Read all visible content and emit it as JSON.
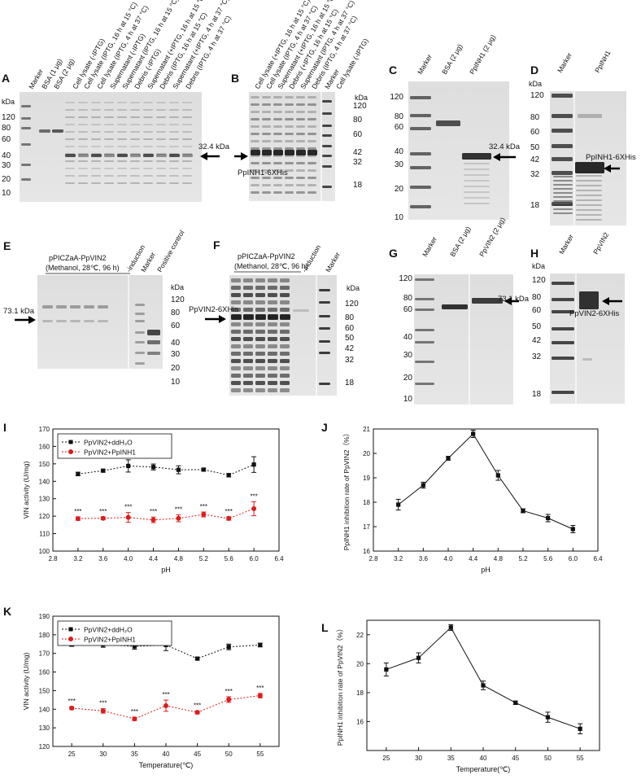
{
  "colors": {
    "series_water": "#111111",
    "series_inhibitor": "#dd1c1c",
    "gel_background": "#dedede",
    "band": "#1e1e1e"
  },
  "kda_label": "kDa",
  "gels": {
    "A": {
      "letter": "A",
      "lanes": [
        "Marker",
        "BSA (1 μg)",
        "BSA (2 μg)",
        "Cell lysate (-IPTG)",
        "Cell lysate (IPTG, 16 h at 15 °C)",
        "Cell lysate (IPTG, 4 h at 37 °C)",
        "Supernatant (-IPTG)",
        "Supernatant (IPTG, 16 h at 15 °C)",
        "Debris (-IPTG)",
        "Supernatant (+IPTG, 16 h at 15 °C)",
        "Debris (IPTG, 16 h at 15 °C)",
        "Supernatant (+IPTG, 4 h at 37 °C)",
        "Debris (IPTG, 4 h at 37 °C)"
      ],
      "markers": [
        "120",
        "80",
        "60",
        "40",
        "30",
        "20",
        "10"
      ],
      "annotation": "32.4 kDa"
    },
    "B": {
      "letter": "B",
      "lanes": [
        "Cell lysate (+IPTG, 16 h at 15 °C)",
        "Cell lysate (IPTG, 4 h at 37 °C)",
        "Supernatant (+IPTG, 16 h at 15 °C)",
        "Debris (+IPTG, 16 h at 15 °C)",
        "Supernatant (IPTG, 4 h at 37 °C)",
        "Debris (IPTG, 4 h at 37 °C)",
        "Marker",
        "Cell lysate (-IPTG)"
      ],
      "markers": [
        "120",
        "80",
        "60",
        "42",
        "32",
        "18"
      ],
      "annotation": "PpINH1-6XHis"
    },
    "C": {
      "letter": "C",
      "lanes": [
        "Marker",
        "BSA (2 μg)",
        "PpINH1 (2 μg)"
      ],
      "markers": [
        "120",
        "80",
        "60",
        "40",
        "30",
        "20",
        "10"
      ],
      "annotation": "32.4 kDa"
    },
    "D": {
      "letter": "D",
      "lanes": [
        "Marker",
        "PpINH1"
      ],
      "markers": [
        "120",
        "80",
        "60",
        "50",
        "42",
        "32",
        "18"
      ],
      "annotation": "PpINH1-6XHis"
    },
    "E": {
      "letter": "E",
      "construct": "pPICZaA-PpVIN2",
      "condition": "(Methanol, 28℃, 96 h)",
      "lanes": [
        "-induction",
        "Marker",
        "Positive control"
      ],
      "markers": [
        "120",
        "80",
        "60",
        "40",
        "30",
        "20",
        "10"
      ],
      "annotation": "73.1 kDa"
    },
    "F": {
      "letter": "F",
      "construct": "pPICZaA-PpVIN2",
      "condition": "(Methanol, 28℃, 96 h)",
      "lanes": [
        "-induction",
        "Marker"
      ],
      "markers": [
        "120",
        "80",
        "60",
        "50",
        "42",
        "32",
        "18"
      ],
      "annotation": "PpVIN2-6XHis"
    },
    "G": {
      "letter": "G",
      "lanes": [
        "Marker",
        "BSA (2 μg)",
        "PpVIN2 (2 μg)"
      ],
      "markers": [
        "120",
        "80",
        "60",
        "40",
        "30",
        "20",
        "10"
      ],
      "annotation": "73.1 kDa"
    },
    "H": {
      "letter": "H",
      "lanes": [
        "Marker",
        "PpVIN2"
      ],
      "markers": [
        "120",
        "80",
        "60",
        "50",
        "42",
        "32",
        "18"
      ],
      "annotation": "PpVIN2-6XHis"
    }
  },
  "chart_data": [
    {
      "panel": "I",
      "type": "line",
      "xlabel": "pH",
      "ylabel": "VIN activity (U/mg)",
      "xlim": [
        2.8,
        6.4
      ],
      "ylim": [
        100,
        170
      ],
      "xticks": [
        "2.8",
        "3.2",
        "3.6",
        "4.0",
        "4.4",
        "4.8",
        "5.2",
        "5.6",
        "6.0",
        "6.4"
      ],
      "yticks": [
        "100",
        "110",
        "120",
        "130",
        "140",
        "150",
        "160",
        "170"
      ],
      "x": [
        3.2,
        3.6,
        4.0,
        4.4,
        4.8,
        5.2,
        5.6,
        6.0
      ],
      "legend": "top-left",
      "series": [
        {
          "name": "PpVIN2+ddH₂O",
          "values": [
            144.2,
            146.1,
            148.8,
            148.2,
            146.6,
            146.7,
            143.5,
            149.6
          ],
          "err": [
            1.0,
            0.8,
            3.5,
            1.7,
            2.3,
            0.8,
            1.0,
            4.5
          ]
        },
        {
          "name": "PpVIN2+PpINH1",
          "values": [
            118.6,
            118.8,
            119.3,
            117.9,
            118.8,
            121.0,
            118.7,
            124.3
          ],
          "err": [
            1.0,
            0.8,
            2.8,
            1.6,
            2.0,
            1.4,
            1.0,
            4.0
          ],
          "stars": "***"
        }
      ]
    },
    {
      "panel": "J",
      "type": "line",
      "xlabel": "pH",
      "ylabel": "PpINH1 inhibition rate of PpVIN2（%）",
      "xlim": [
        2.8,
        6.4
      ],
      "ylim": [
        16,
        21
      ],
      "xticks": [
        "2.8",
        "3.2",
        "3.6",
        "4.0",
        "4.4",
        "4.8",
        "5.2",
        "5.6",
        "6.0",
        "6.4"
      ],
      "yticks": [
        "16",
        "17",
        "18",
        "19",
        "20",
        "21"
      ],
      "x": [
        3.2,
        3.6,
        4.0,
        4.4,
        4.8,
        5.2,
        5.6,
        6.0
      ],
      "series": [
        {
          "values": [
            17.9,
            18.7,
            19.8,
            20.8,
            19.1,
            17.65,
            17.35,
            16.9
          ],
          "err": [
            0.22,
            0.12,
            0.08,
            0.15,
            0.2,
            0.08,
            0.15,
            0.15
          ]
        }
      ]
    },
    {
      "panel": "K",
      "type": "line",
      "xlabel": "Temperature(℃)",
      "ylabel": "VIN activity (U/mg)",
      "xlim": [
        22,
        58
      ],
      "ylim": [
        120,
        190
      ],
      "xticks": [
        "25",
        "30",
        "35",
        "40",
        "45",
        "50",
        "55"
      ],
      "yticks": [
        "120",
        "130",
        "140",
        "150",
        "160",
        "170",
        "180",
        "190"
      ],
      "x": [
        25,
        30,
        35,
        40,
        45,
        50,
        55
      ],
      "legend": "top-left",
      "series": [
        {
          "name": "PpVIN2+ddH₂O",
          "values": [
            175.0,
            174.8,
            173.8,
            174.5,
            167.2,
            173.5,
            174.5
          ],
          "err": [
            1.2,
            1.5,
            1.5,
            3.0,
            0.7,
            1.5,
            1.0
          ]
        },
        {
          "name": "PpVIN2+PpINH1",
          "values": [
            140.6,
            139.1,
            134.8,
            141.9,
            138.3,
            145.2,
            147.3
          ],
          "err": [
            0.8,
            1.2,
            0.9,
            3.0,
            0.8,
            1.5,
            1.2
          ],
          "stars": "***"
        }
      ]
    },
    {
      "panel": "L",
      "type": "line",
      "xlabel": "Temperature(℃)",
      "ylabel": "PpINH1 inhibition rate of PpVIN2（%）",
      "xlim": [
        22,
        58
      ],
      "ylim": [
        14,
        23
      ],
      "xticks": [
        "25",
        "30",
        "35",
        "40",
        "45",
        "50",
        "55"
      ],
      "yticks": [
        "16",
        "18",
        "20",
        "22"
      ],
      "x": [
        25,
        30,
        35,
        40,
        45,
        50,
        55
      ],
      "series": [
        {
          "values": [
            19.6,
            20.4,
            22.5,
            18.5,
            17.3,
            16.3,
            15.5
          ],
          "err": [
            0.45,
            0.35,
            0.2,
            0.3,
            0.12,
            0.35,
            0.35
          ]
        }
      ]
    }
  ]
}
